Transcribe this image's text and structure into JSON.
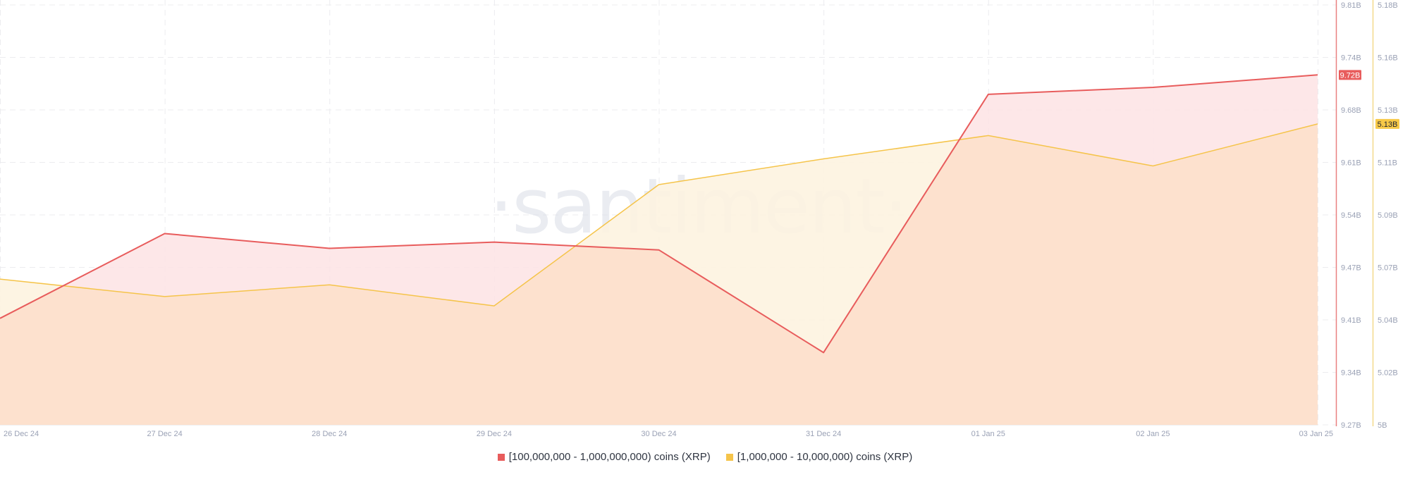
{
  "chart_data": {
    "type": "area",
    "title": "",
    "watermark": "·santiment·",
    "x": [
      "26 Dec 24",
      "27 Dec 24",
      "28 Dec 24",
      "29 Dec 24",
      "30 Dec 24",
      "31 Dec 24",
      "01 Jan 25",
      "02 Jan 25",
      "03 Jan 25"
    ],
    "series": [
      {
        "name": "[100,000,000 - 1,000,000,000) coins (XRP)",
        "color": "#e85c5c",
        "fill": "#fde3e4",
        "axis": "left",
        "values": [
          9.407,
          9.516,
          9.497,
          9.505,
          9.495,
          9.363,
          9.695,
          9.704,
          9.72
        ],
        "last_value_label": "9.72B"
      },
      {
        "name": "[1,000,000 - 10,000,000) coins (XRP)",
        "color": "#f5c44a",
        "fill": "#fdf3e0",
        "axis": "right",
        "values": [
          5.0625,
          5.055,
          5.06,
          5.051,
          5.103,
          5.114,
          5.124,
          5.111,
          5.129
        ],
        "last_value_label": "5.13B"
      }
    ],
    "y_axes": {
      "left": {
        "ticks": [
          "9.81B",
          "9.74B",
          "9.68B",
          "9.61B",
          "9.54B",
          "9.47B",
          "9.41B",
          "9.34B",
          "9.27B"
        ],
        "ylim": [
          9.27,
          9.81
        ],
        "color": "#e85c5c"
      },
      "right": {
        "ticks": [
          "5.18B",
          "5.16B",
          "5.13B",
          "5.11B",
          "5.09B",
          "5.07B",
          "5.04B",
          "5.02B",
          "5B"
        ],
        "ylim": [
          5.0,
          5.18
        ],
        "color": "#f5c44a"
      }
    },
    "grid": true,
    "legend_position": "bottom-center",
    "xlabel": "",
    "ylabel": ""
  },
  "legend": {
    "items": [
      {
        "label": "[100,000,000 - 1,000,000,000) coins (XRP)",
        "color": "#e85c5c"
      },
      {
        "label": "[1,000,000 - 10,000,000) coins (XRP)",
        "color": "#f5c44a"
      }
    ]
  }
}
